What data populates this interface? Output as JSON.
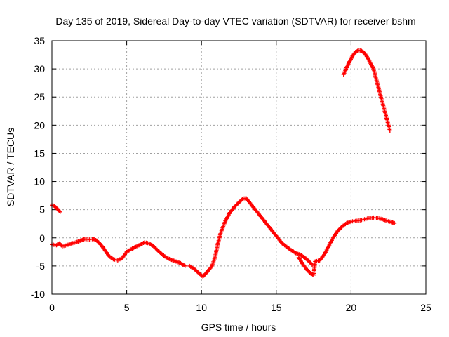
{
  "chart_data": {
    "type": "scatter",
    "title": "Day 135 of 2019, Sidereal Day-to-day VTEC variation (SDTVAR) for receiver bshm",
    "xlabel": "GPS time / hours",
    "ylabel": "SDTVAR / TECUs",
    "xlim": [
      0,
      25
    ],
    "ylim": [
      -10,
      35
    ],
    "xticks": [
      0,
      5,
      10,
      15,
      20,
      25
    ],
    "yticks": [
      -10,
      -5,
      0,
      5,
      10,
      15,
      20,
      25,
      30,
      35
    ],
    "grid": true,
    "marker": "+",
    "color": "#ff0000",
    "series": [
      {
        "name": "segment-a",
        "points": [
          [
            0.0,
            5.8
          ],
          [
            0.15,
            5.7
          ],
          [
            0.3,
            5.3
          ],
          [
            0.45,
            4.9
          ],
          [
            0.55,
            4.6
          ]
        ]
      },
      {
        "name": "segment-b",
        "points": [
          [
            0.0,
            -1.2
          ],
          [
            0.3,
            -1.3
          ],
          [
            0.5,
            -1.0
          ],
          [
            0.7,
            -1.5
          ],
          [
            1.0,
            -1.3
          ],
          [
            1.3,
            -1.0
          ],
          [
            1.6,
            -0.8
          ],
          [
            1.9,
            -0.5
          ],
          [
            2.2,
            -0.2
          ],
          [
            2.5,
            -0.3
          ],
          [
            2.8,
            -0.2
          ],
          [
            3.0,
            -0.5
          ],
          [
            3.2,
            -1.0
          ],
          [
            3.5,
            -2.0
          ],
          [
            3.8,
            -3.2
          ],
          [
            4.1,
            -3.8
          ],
          [
            4.4,
            -4.0
          ],
          [
            4.7,
            -3.6
          ],
          [
            5.0,
            -2.5
          ],
          [
            5.3,
            -2.0
          ],
          [
            5.6,
            -1.6
          ],
          [
            5.9,
            -1.2
          ],
          [
            6.2,
            -0.8
          ],
          [
            6.5,
            -1.0
          ],
          [
            6.8,
            -1.5
          ],
          [
            7.1,
            -2.3
          ],
          [
            7.4,
            -3.0
          ],
          [
            7.7,
            -3.6
          ],
          [
            8.0,
            -3.9
          ],
          [
            8.3,
            -4.2
          ],
          [
            8.6,
            -4.5
          ],
          [
            8.9,
            -5.0
          ]
        ]
      },
      {
        "name": "segment-c",
        "points": [
          [
            9.2,
            -5.0
          ],
          [
            9.5,
            -5.5
          ],
          [
            9.8,
            -6.2
          ],
          [
            10.1,
            -6.9
          ],
          [
            10.4,
            -6.0
          ],
          [
            10.7,
            -5.0
          ],
          [
            10.9,
            -3.5
          ],
          [
            11.1,
            -1.0
          ],
          [
            11.3,
            1.0
          ],
          [
            11.6,
            3.0
          ],
          [
            11.9,
            4.5
          ],
          [
            12.2,
            5.5
          ],
          [
            12.5,
            6.3
          ],
          [
            12.8,
            7.0
          ],
          [
            13.0,
            7.0
          ],
          [
            13.3,
            6.0
          ],
          [
            13.6,
            5.0
          ],
          [
            13.9,
            4.0
          ],
          [
            14.2,
            3.0
          ],
          [
            14.5,
            2.0
          ],
          [
            14.8,
            1.0
          ],
          [
            15.1,
            0.0
          ],
          [
            15.4,
            -1.0
          ],
          [
            15.7,
            -1.6
          ],
          [
            16.0,
            -2.2
          ],
          [
            16.3,
            -2.7
          ],
          [
            16.6,
            -3.0
          ],
          [
            16.9,
            -3.5
          ],
          [
            17.2,
            -4.2
          ],
          [
            17.4,
            -4.8
          ]
        ]
      },
      {
        "name": "segment-d",
        "points": [
          [
            16.5,
            -3.5
          ],
          [
            16.8,
            -4.8
          ],
          [
            17.1,
            -5.8
          ],
          [
            17.3,
            -6.3
          ],
          [
            17.5,
            -6.6
          ],
          [
            17.6,
            -4.2
          ],
          [
            17.9,
            -4.0
          ],
          [
            18.2,
            -3.0
          ],
          [
            18.5,
            -1.5
          ],
          [
            18.8,
            0.0
          ],
          [
            19.1,
            1.2
          ],
          [
            19.4,
            2.0
          ],
          [
            19.7,
            2.6
          ],
          [
            20.0,
            2.9
          ],
          [
            20.3,
            3.0
          ],
          [
            20.6,
            3.1
          ],
          [
            20.9,
            3.3
          ],
          [
            21.2,
            3.5
          ],
          [
            21.5,
            3.6
          ],
          [
            21.8,
            3.5
          ],
          [
            22.1,
            3.3
          ],
          [
            22.4,
            3.0
          ],
          [
            22.7,
            2.8
          ],
          [
            22.9,
            2.6
          ]
        ]
      },
      {
        "name": "segment-e",
        "points": [
          [
            19.5,
            29.0
          ],
          [
            19.7,
            30.2
          ],
          [
            19.9,
            31.3
          ],
          [
            20.1,
            32.3
          ],
          [
            20.3,
            33.0
          ],
          [
            20.5,
            33.3
          ],
          [
            20.7,
            33.2
          ],
          [
            20.9,
            32.8
          ],
          [
            21.1,
            32.0
          ],
          [
            21.3,
            31.0
          ],
          [
            21.5,
            30.0
          ],
          [
            21.7,
            28.0
          ],
          [
            21.9,
            26.0
          ],
          [
            22.1,
            24.0
          ],
          [
            22.3,
            22.0
          ],
          [
            22.5,
            20.0
          ],
          [
            22.6,
            19.0
          ]
        ]
      }
    ]
  }
}
